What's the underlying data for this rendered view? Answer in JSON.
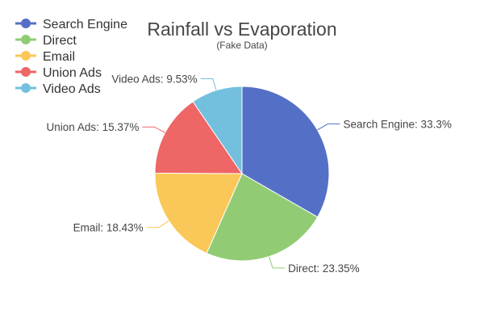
{
  "chart_data": {
    "type": "pie",
    "title": "Rainfall vs Evaporation",
    "subtitle": "(Fake Data)",
    "legend_position": "top-left",
    "slices": [
      {
        "name": "Search Engine",
        "value": 33.3,
        "label": "Search Engine: 33.3%",
        "color": "#5470c6"
      },
      {
        "name": "Direct",
        "value": 23.35,
        "label": "Direct: 23.35%",
        "color": "#91cc75"
      },
      {
        "name": "Email",
        "value": 18.43,
        "label": "Email: 18.43%",
        "color": "#fac858"
      },
      {
        "name": "Union Ads",
        "value": 15.37,
        "label": "Union Ads: 15.37%",
        "color": "#ee6666"
      },
      {
        "name": "Video Ads",
        "value": 9.53,
        "label": "Video Ads: 9.53%",
        "color": "#73c0de"
      }
    ]
  }
}
